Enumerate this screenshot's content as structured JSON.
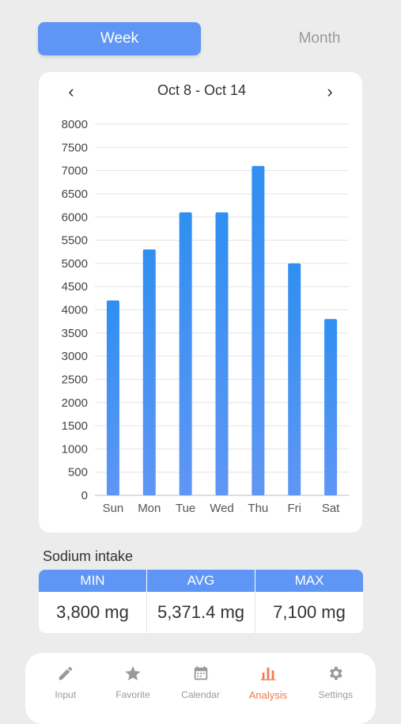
{
  "toggle": {
    "week": "Week",
    "month": "Month",
    "selected": "Week"
  },
  "header": {
    "range": "Oct 8 - Oct 14",
    "prev": "‹",
    "next": "›"
  },
  "chart_data": {
    "type": "bar",
    "categories": [
      "Sun",
      "Mon",
      "Tue",
      "Wed",
      "Thu",
      "Fri",
      "Sat"
    ],
    "values": [
      4200,
      5300,
      6100,
      6100,
      7100,
      5000,
      3800
    ],
    "ylim": [
      0,
      8000
    ],
    "yticks": [
      0,
      500,
      1000,
      1500,
      2000,
      2500,
      3000,
      3500,
      4000,
      4500,
      5000,
      5500,
      6000,
      6500,
      7000,
      7500,
      8000
    ],
    "grid": true,
    "bar_color_top": "#2f8ff0",
    "bar_color_bottom": "#5f96f5"
  },
  "stats": {
    "title": "Sodium intake",
    "headers": [
      "MIN",
      "AVG",
      "MAX"
    ],
    "values": [
      "3,800 mg",
      "5,371.4 mg",
      "7,100 mg"
    ]
  },
  "tabs": [
    {
      "label": "Input",
      "icon": "pencil-icon"
    },
    {
      "label": "Favorite",
      "icon": "star-icon"
    },
    {
      "label": "Calendar",
      "icon": "calendar-icon"
    },
    {
      "label": "Analysis",
      "icon": "bar-chart-icon",
      "active": true
    },
    {
      "label": "Settings",
      "icon": "gear-icon"
    }
  ],
  "colors": {
    "accent": "#5f96f5",
    "active_tab": "#f07a4e",
    "inactive_text": "#9a9a9a"
  }
}
